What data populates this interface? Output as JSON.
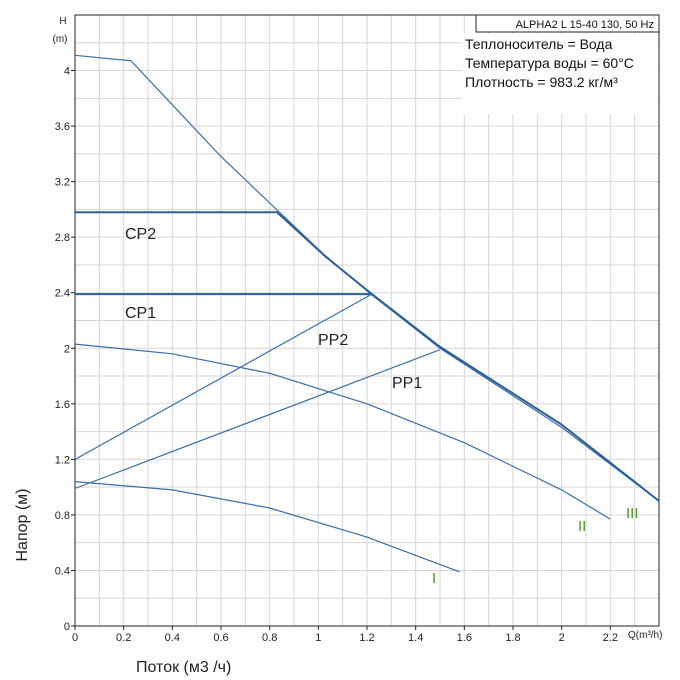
{
  "chart_data": {
    "type": "line",
    "model": "ALPHA2 L 15-40 130, 50 Hz",
    "info": [
      "Теплоноситель = Вода",
      "Температура воды = 60°C",
      "Плотность = 983.2 кг/м³"
    ],
    "xlabel": "Поток (м3 /ч)",
    "ylabel": "Напор (м)",
    "x_unit": "Q(m³/h)",
    "y_unit_top": "H",
    "y_unit_bottom": "(m)",
    "xlim": [
      0,
      2.4
    ],
    "ylim": [
      0,
      4.4
    ],
    "x_ticks": [
      "0",
      "0.2",
      "0.4",
      "0.6",
      "0.8",
      "1",
      "1.2",
      "1.4",
      "1.6",
      "1.8",
      "2",
      "2.2"
    ],
    "y_ticks": [
      "0",
      "0.4",
      "0.8",
      "1.2",
      "1.6",
      "2",
      "2.4",
      "2.8",
      "3.2",
      "3.6",
      "4"
    ],
    "grid": true,
    "series": [
      {
        "name": "I",
        "color": "#3a6fa6",
        "x": [
          0,
          0.4,
          0.8,
          1.2,
          1.58
        ],
        "y": [
          1.04,
          0.98,
          0.85,
          0.64,
          0.39
        ]
      },
      {
        "name": "II",
        "color": "#3a6fa6",
        "x": [
          0,
          0.4,
          0.8,
          1.2,
          1.6,
          2.0,
          2.2
        ],
        "y": [
          2.03,
          1.96,
          1.82,
          1.6,
          1.32,
          0.98,
          0.77
        ]
      },
      {
        "name": "III",
        "color": "#3a6fa6",
        "x": [
          0,
          0.23,
          0.6,
          0.84,
          1.02,
          1.23,
          1.5,
          2.0,
          2.4
        ],
        "y": [
          4.11,
          4.07,
          3.38,
          2.98,
          2.68,
          2.37,
          2.0,
          1.43,
          0.9
        ]
      },
      {
        "name": "CP1",
        "color": "#2c5f98",
        "x": [
          0,
          1.22,
          1.5,
          2.0,
          2.4
        ],
        "y": [
          2.39,
          2.39,
          2.01,
          1.45,
          0.9
        ]
      },
      {
        "name": "CP2",
        "color": "#2c5f98",
        "x": [
          0,
          0.83,
          1.03,
          1.22
        ],
        "y": [
          2.98,
          2.98,
          2.66,
          2.39
        ]
      },
      {
        "name": "PP1",
        "color": "#3a6fa6",
        "x": [
          0,
          1.5
        ],
        "y": [
          0.99,
          1.99
        ]
      },
      {
        "name": "PP2",
        "color": "#3a6fa6",
        "x": [
          0,
          1.22
        ],
        "y": [
          1.2,
          2.39
        ]
      }
    ]
  }
}
